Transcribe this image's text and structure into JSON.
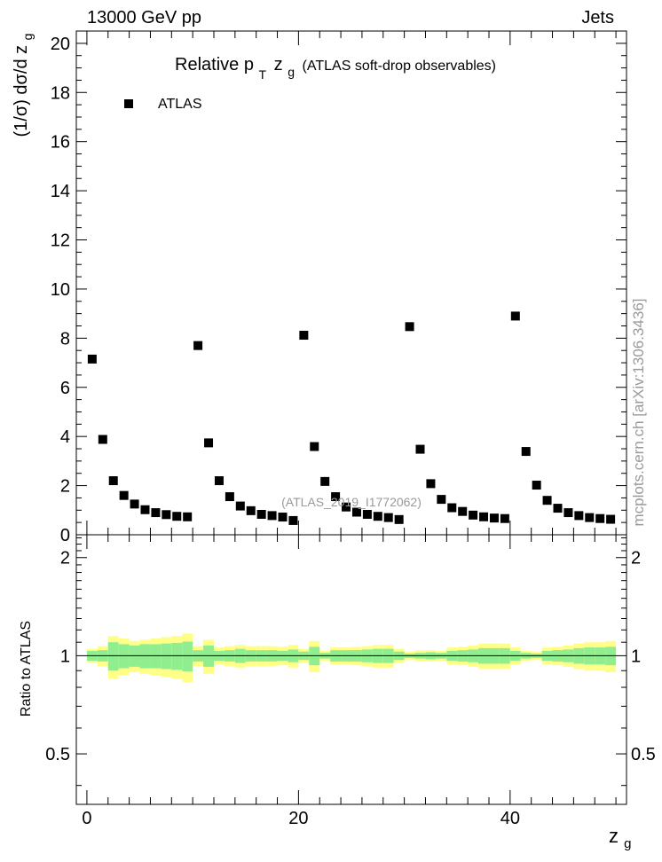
{
  "header": {
    "left": "13000 GeV pp",
    "right": "Jets",
    "side_note": "mcplots.cern.ch [arXiv:1306.3436]"
  },
  "chart_data": {
    "type": "scatter",
    "title": "Relative p_T z_g (ATLAS soft-drop observables)",
    "title_parts": {
      "main": "Relative p",
      "sub_t": "T",
      "z": "z",
      "sub_g": "g",
      "rest": "(ATLAS soft-drop observables)"
    },
    "watermark": "(ATLAS_2019_I1772062)",
    "xlabel": "z_g",
    "xlabel_parts": {
      "z": "z",
      "sub": "g"
    },
    "ylabel": "(1/σ) dσ/d z_g",
    "ylabel_parts": {
      "main": "(1/σ) dσ/d z",
      "sub": "g"
    },
    "ratio_ylabel": "Ratio to ATLAS",
    "xlim": [
      -1,
      51
    ],
    "ylim": [
      0,
      20.5
    ],
    "ratio_ylim": [
      0.35,
      2.35
    ],
    "grid": false,
    "legend_position": "top-left",
    "x_ticks": [
      0,
      20,
      40
    ],
    "y_ticks": [
      0,
      2,
      4,
      6,
      8,
      10,
      12,
      14,
      16,
      18,
      20
    ],
    "ratio_y_ticks": [
      0.5,
      1,
      2
    ],
    "series": [
      {
        "name": "ATLAS",
        "color": "#000000",
        "x": [
          0.5,
          1.5,
          2.5,
          3.5,
          4.5,
          5.5,
          6.5,
          7.5,
          8.5,
          9.5,
          10.5,
          11.5,
          12.5,
          13.5,
          14.5,
          15.5,
          16.5,
          17.5,
          18.5,
          19.5,
          20.5,
          21.5,
          22.5,
          23.5,
          24.5,
          25.5,
          26.5,
          27.5,
          28.5,
          29.5,
          30.5,
          31.5,
          32.5,
          33.5,
          34.5,
          35.5,
          36.5,
          37.5,
          38.5,
          39.5,
          40.5,
          41.5,
          42.5,
          43.5,
          44.5,
          45.5,
          46.5,
          47.5,
          48.5,
          49.5
        ],
        "y": [
          7.15,
          3.88,
          2.2,
          1.6,
          1.25,
          1.02,
          0.9,
          0.82,
          0.75,
          0.73,
          7.7,
          3.74,
          2.2,
          1.55,
          1.17,
          0.98,
          0.83,
          0.78,
          0.72,
          0.58,
          8.12,
          3.59,
          2.17,
          1.55,
          1.13,
          0.92,
          0.83,
          0.75,
          0.7,
          0.62,
          8.47,
          3.48,
          2.08,
          1.44,
          1.1,
          0.95,
          0.8,
          0.73,
          0.68,
          0.66,
          8.9,
          3.39,
          2.02,
          1.4,
          1.08,
          0.9,
          0.78,
          0.7,
          0.66,
          0.63
        ]
      }
    ],
    "ratio_bands": {
      "color_inner": "#90ee90",
      "color_outer": "#ffff88",
      "x_edges": [
        0,
        1,
        2,
        3,
        4,
        5,
        6,
        7,
        8,
        9,
        10,
        11,
        12,
        13,
        14,
        15,
        16,
        17,
        18,
        19,
        20,
        21,
        22,
        23,
        24,
        25,
        26,
        27,
        28,
        29,
        30,
        31,
        32,
        33,
        34,
        35,
        36,
        37,
        38,
        39,
        40,
        41,
        42,
        43,
        44,
        45,
        46,
        47,
        48,
        49,
        50
      ],
      "inner_half_width": [
        0.035,
        0.04,
        0.1,
        0.085,
        0.075,
        0.085,
        0.085,
        0.09,
        0.095,
        0.105,
        0.04,
        0.075,
        0.035,
        0.04,
        0.05,
        0.04,
        0.04,
        0.04,
        0.035,
        0.045,
        0.03,
        0.065,
        0.02,
        0.04,
        0.04,
        0.04,
        0.045,
        0.05,
        0.05,
        0.03,
        0.015,
        0.02,
        0.025,
        0.02,
        0.035,
        0.04,
        0.045,
        0.055,
        0.055,
        0.055,
        0.035,
        0.02,
        0.015,
        0.035,
        0.04,
        0.045,
        0.055,
        0.06,
        0.06,
        0.065
      ],
      "outer_half_width": [
        0.05,
        0.07,
        0.15,
        0.13,
        0.11,
        0.12,
        0.13,
        0.14,
        0.15,
        0.17,
        0.07,
        0.12,
        0.06,
        0.07,
        0.08,
        0.07,
        0.07,
        0.07,
        0.065,
        0.08,
        0.05,
        0.11,
        0.035,
        0.06,
        0.06,
        0.065,
        0.07,
        0.08,
        0.08,
        0.05,
        0.03,
        0.04,
        0.04,
        0.035,
        0.06,
        0.065,
        0.075,
        0.09,
        0.09,
        0.09,
        0.06,
        0.035,
        0.03,
        0.06,
        0.065,
        0.075,
        0.09,
        0.1,
        0.1,
        0.11
      ]
    }
  }
}
